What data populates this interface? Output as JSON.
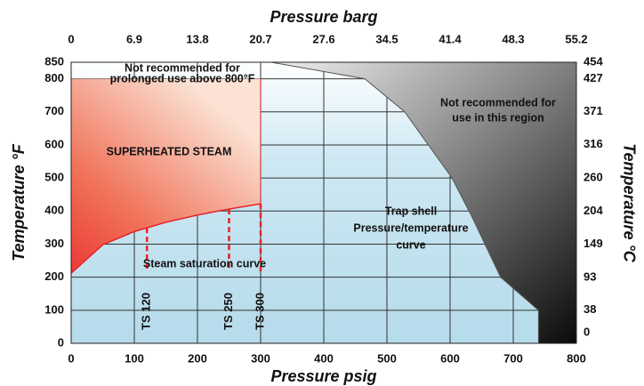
{
  "chart_data": {
    "type": "pressure_temperature",
    "x_label": "Pressure psig",
    "x2_label": "Pressure barg",
    "y_label": "Temperature °F",
    "y2_label": "Temperature °C",
    "xlim": [
      0,
      800
    ],
    "xticks": [
      0,
      100,
      200,
      300,
      400,
      500,
      600,
      700,
      800
    ],
    "x2lim": [
      0,
      55.2
    ],
    "x2ticks": [
      0,
      6.9,
      13.8,
      20.7,
      27.6,
      34.5,
      41.4,
      48.3,
      55.2
    ],
    "ylim": [
      0,
      850
    ],
    "yticks": [
      0,
      100,
      200,
      300,
      400,
      500,
      600,
      700,
      800,
      850
    ],
    "y2lim": [
      -17.8,
      454.4
    ],
    "y2ticks": [
      0,
      38,
      93,
      149,
      204,
      260,
      316,
      371,
      427,
      454
    ],
    "grid": true,
    "saturation_curve": {
      "color": "#e8202a",
      "x": [
        0,
        50,
        100,
        150,
        200,
        250,
        300
      ],
      "values": [
        212,
        298,
        338,
        366,
        388,
        406,
        422
      ]
    },
    "superheat_limit": 800,
    "shell_curve": {
      "color": "#555555",
      "x": [
        317,
        465,
        528,
        603,
        634,
        680,
        740,
        740
      ],
      "values": [
        850,
        800,
        700,
        500,
        385,
        200,
        100,
        0
      ]
    },
    "ts_lines": [
      {
        "label": "TS 120",
        "x": 120
      },
      {
        "label": "TS 250",
        "x": 250
      },
      {
        "label": "TS 300",
        "x": 300
      }
    ],
    "annotations": [
      {
        "lines": [
          "Not recommended for",
          "prolonged use above 800°F"
        ]
      },
      {
        "lines": [
          "Not recommended for",
          "use in this region"
        ]
      },
      {
        "lines": [
          "SUPERHEATED STEAM"
        ]
      },
      {
        "lines": [
          "Steam saturation curve"
        ]
      },
      {
        "lines": [
          "Trap shell",
          "Pressure/temperature",
          "curve"
        ]
      }
    ]
  }
}
